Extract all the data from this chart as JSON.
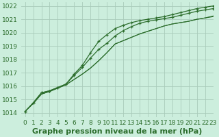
{
  "title": "Graphe pression niveau de la mer (hPa)",
  "background_color": "#cceedd",
  "grid_color": "#aaccbb",
  "line_color": "#2d6e2d",
  "xlim": [
    -0.5,
    23
  ],
  "ylim": [
    1013.7,
    1022.3
  ],
  "yticks": [
    1014,
    1015,
    1016,
    1017,
    1018,
    1019,
    1020,
    1021,
    1022
  ],
  "xticks": [
    0,
    1,
    2,
    3,
    4,
    5,
    6,
    7,
    8,
    9,
    10,
    11,
    12,
    13,
    14,
    15,
    16,
    17,
    18,
    19,
    20,
    21,
    22,
    23
  ],
  "series": [
    {
      "y": [
        1014.1,
        1014.7,
        1015.4,
        1015.6,
        1015.85,
        1016.1,
        1016.5,
        1016.9,
        1017.35,
        1017.9,
        1018.5,
        1019.15,
        1019.4,
        1019.65,
        1019.9,
        1020.1,
        1020.3,
        1020.5,
        1020.65,
        1020.75,
        1020.85,
        1021.0,
        1021.1,
        1021.2
      ],
      "marker": false
    },
    {
      "y": [
        1014.1,
        1014.7,
        1015.4,
        1015.6,
        1015.85,
        1016.1,
        1016.5,
        1016.9,
        1017.35,
        1017.9,
        1018.5,
        1019.15,
        1019.4,
        1019.65,
        1019.9,
        1020.1,
        1020.3,
        1020.5,
        1020.65,
        1020.75,
        1020.85,
        1021.0,
        1021.1,
        1021.25
      ],
      "marker": false
    },
    {
      "y": [
        1014.1,
        1014.75,
        1015.5,
        1015.65,
        1015.9,
        1016.15,
        1016.8,
        1017.4,
        1018.1,
        1018.75,
        1019.2,
        1019.75,
        1020.15,
        1020.45,
        1020.7,
        1020.85,
        1020.95,
        1021.05,
        1021.15,
        1021.3,
        1021.45,
        1021.6,
        1021.7,
        1021.8
      ],
      "marker": true
    },
    {
      "y": [
        1014.1,
        1014.75,
        1015.5,
        1015.65,
        1015.9,
        1016.15,
        1016.9,
        1017.55,
        1018.5,
        1019.35,
        1019.85,
        1020.3,
        1020.55,
        1020.75,
        1020.9,
        1021.0,
        1021.1,
        1021.2,
        1021.35,
        1021.5,
        1021.65,
        1021.8,
        1021.9,
        1022.0
      ],
      "marker": true
    }
  ],
  "title_fontsize": 8,
  "tick_fontsize": 6.5
}
